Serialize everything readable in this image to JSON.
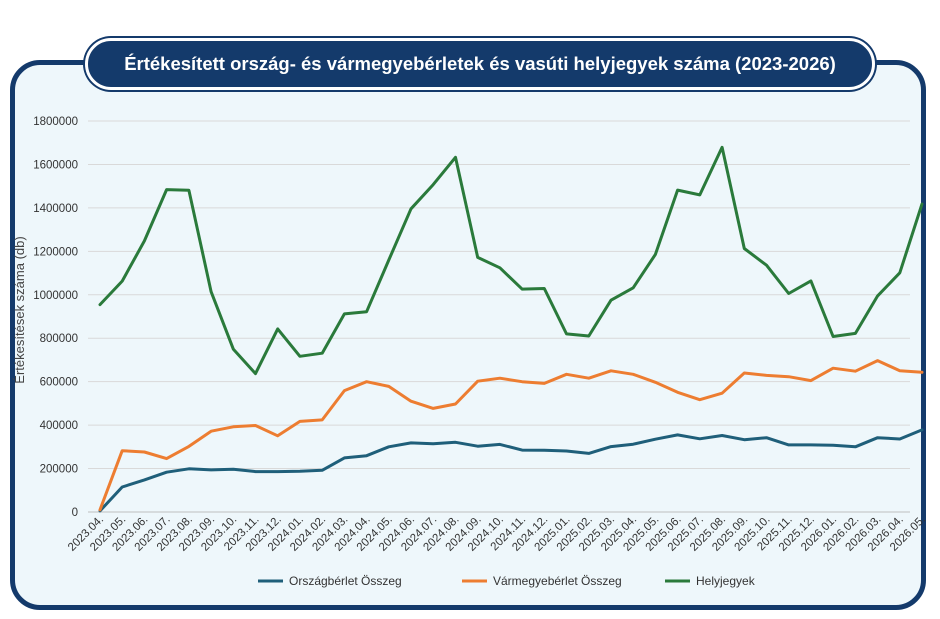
{
  "title": "Értékesített ország- és vármegyebérletek és vasúti helyjegyek száma (2023-2026)",
  "colors": {
    "frame": "#143a6b",
    "background": "#eef7fb"
  },
  "chart_data": {
    "type": "line",
    "title": "Értékesített ország- és vármegyebérletek és vasúti helyjegyek száma (2023-2026)",
    "xlabel": "",
    "ylabel": "Értékesítések száma (db)",
    "ylim": [
      0,
      1800000
    ],
    "yticks": [
      0,
      200000,
      400000,
      600000,
      800000,
      1000000,
      1200000,
      1400000,
      1600000,
      1800000
    ],
    "ytick_labels": [
      "0",
      "200000",
      "400000",
      "600000",
      "800000",
      "1000000",
      "1200000",
      "1400000",
      "1600000",
      "1800000"
    ],
    "grid": true,
    "legend_position": "bottom",
    "categories": [
      "2023.04.",
      "2023.05.",
      "2023.06.",
      "2023.07.",
      "2023.08.",
      "2023.09.",
      "2023.10.",
      "2023.11.",
      "2023.12.",
      "2024.01.",
      "2024.02.",
      "2024.03.",
      "2024.04.",
      "2024.05.",
      "2024.06.",
      "2024.07.",
      "2024.08.",
      "2024.09.",
      "2024.10.",
      "2024.11.",
      "2024.12.",
      "2025.01.",
      "2025.02.",
      "2025.03.",
      "2025.04.",
      "2025.05.",
      "2025.06.",
      "2025.07.",
      "2025.08.",
      "2025.09.",
      "2025.10.",
      "2025.11.",
      "2025.12.",
      "2026.01.",
      "2026.02.",
      "2026.03.",
      "2026.04.",
      "2026.05."
    ],
    "series": [
      {
        "name": "Országbérlet Összeg",
        "color": "#1f5f7a",
        "values": [
          5000,
          115000,
          148000,
          183000,
          199000,
          194000,
          197000,
          186000,
          186000,
          188000,
          192000,
          249000,
          259000,
          300000,
          318000,
          314000,
          321000,
          303000,
          311000,
          285000,
          284000,
          281000,
          270000,
          301000,
          312000,
          335000,
          355000,
          337000,
          352000,
          333000,
          342000,
          309000,
          309000,
          307000,
          300000,
          342000,
          336000,
          378000
        ]
      },
      {
        "name": "Vármegyebérlet Összeg",
        "color": "#ed7d31",
        "values": [
          10000,
          282000,
          276000,
          246000,
          302000,
          372000,
          392000,
          398000,
          351000,
          417000,
          424000,
          559000,
          600000,
          578000,
          510000,
          477000,
          497000,
          602000,
          616000,
          600000,
          592000,
          634000,
          616000,
          650000,
          634000,
          597000,
          551000,
          517000,
          547000,
          640000,
          629000,
          623000,
          605000,
          662000,
          648000,
          697000,
          650000,
          643000
        ]
      },
      {
        "name": "Helyjegyek",
        "color": "#2a7a3b",
        "values": [
          955000,
          1063000,
          1248000,
          1484000,
          1481000,
          1014000,
          750000,
          637000,
          843000,
          717000,
          731000,
          912000,
          922000,
          1160000,
          1396000,
          1507000,
          1633000,
          1172000,
          1124000,
          1026000,
          1029000,
          820000,
          810000,
          975000,
          1032000,
          1186000,
          1482000,
          1460000,
          1679000,
          1213000,
          1136000,
          1006000,
          1064000,
          808000,
          822000,
          995000,
          1101000,
          1418000
        ]
      }
    ]
  }
}
